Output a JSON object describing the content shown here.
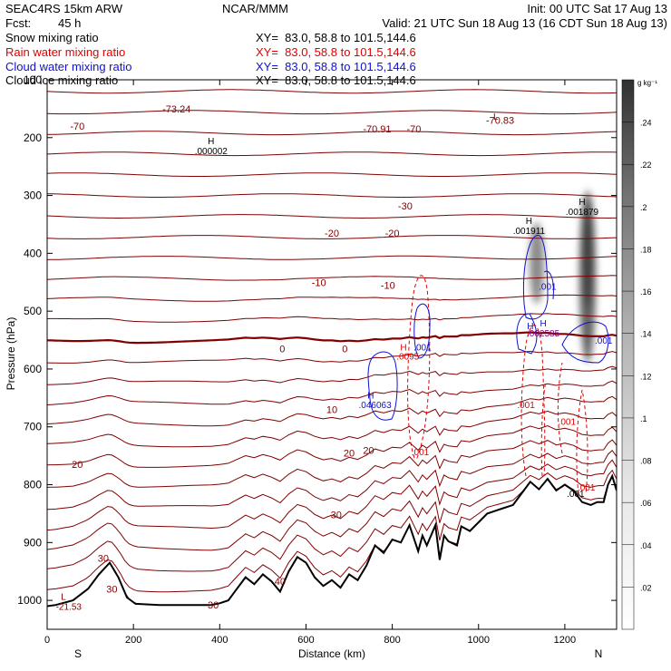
{
  "header": {
    "model": "SEAC4RS 15km ARW",
    "center": "NCAR/MMM",
    "init": "Init: 00 UTC Sat 17 Aug 13",
    "fcst_label": "Fcst:",
    "fcst_value": "45 h",
    "valid": "Valid: 21 UTC Sun 18 Aug 13 (16 CDT Sun 18 Aug 13)",
    "fields": [
      {
        "label": "Snow mixing ratio",
        "xy": "XY=  83.0, 58.8 to 101.5,144.6",
        "color": "#000000"
      },
      {
        "label": "Rain water mixing ratio",
        "xy": "XY=  83.0, 58.8 to 101.5,144.6",
        "color": "#e00000"
      },
      {
        "label": "Cloud water mixing ratio",
        "xy": "XY=  83.0, 58.8 to 101.5,144.6",
        "color": "#1010d0"
      },
      {
        "label": "Cloud ice mixing ratio",
        "xy": "XY=  83.0, 58.8 to 101.5,144.6",
        "color": "#000000"
      }
    ]
  },
  "chart_data": {
    "type": "heatmap",
    "xlabel": "Distance (km)",
    "ylabel": "Pressure (hPa)",
    "xlim": [
      0,
      1320
    ],
    "ylim": [
      1050,
      100
    ],
    "x_ticks": [
      0,
      200,
      400,
      600,
      800,
      1000,
      1200
    ],
    "y_ticks": [
      100,
      200,
      300,
      400,
      500,
      600,
      700,
      800,
      900,
      1000
    ],
    "y_tick_labels": [
      "100",
      "200",
      "300",
      "400",
      "500",
      "600",
      "700",
      "800",
      "900",
      "1000"
    ],
    "x_end_labels": {
      "left": "S",
      "right": "N"
    },
    "colorbar": {
      "unit": "g kg⁻¹",
      "ticks": [
        ".02",
        ".04",
        ".06",
        ".08",
        ".1",
        ".12",
        ".14",
        ".16",
        ".18",
        ".2",
        ".22",
        ".24"
      ],
      "tick_values": [
        0.02,
        0.04,
        0.06,
        0.08,
        0.1,
        0.12,
        0.14,
        0.16,
        0.18,
        0.2,
        0.22,
        0.24
      ],
      "range": [
        0,
        0.26
      ]
    },
    "isotherm_levels": [
      -70,
      -30,
      -20,
      -10,
      0,
      10,
      20,
      30,
      40
    ],
    "contour_labels": [
      {
        "text": "-70",
        "x": 70,
        "p": 180,
        "color": "#800000"
      },
      {
        "text": "-73.24",
        "x": 300,
        "p": 150,
        "color": "#800000"
      },
      {
        "text": "-70.91",
        "x": 765,
        "p": 185,
        "color": "#800000"
      },
      {
        "text": "-70",
        "x": 850,
        "p": 185,
        "color": "#800000"
      },
      {
        "text": "-70.83",
        "x": 1050,
        "p": 170,
        "color": "#800000"
      },
      {
        "text": "-30",
        "x": 830,
        "p": 318,
        "color": "#800000"
      },
      {
        "text": "-20",
        "x": 660,
        "p": 365,
        "color": "#800000"
      },
      {
        "text": "-20",
        "x": 800,
        "p": 365,
        "color": "#800000"
      },
      {
        "text": "-10",
        "x": 630,
        "p": 450,
        "color": "#800000"
      },
      {
        "text": "-10",
        "x": 790,
        "p": 455,
        "color": "#800000"
      },
      {
        "text": "0",
        "x": 545,
        "p": 565,
        "color": "#800000"
      },
      {
        "text": "0",
        "x": 690,
        "p": 565,
        "color": "#800000"
      },
      {
        "text": "10",
        "x": 660,
        "p": 670,
        "color": "#800000"
      },
      {
        "text": "20",
        "x": 70,
        "p": 765,
        "color": "#800000"
      },
      {
        "text": "20",
        "x": 700,
        "p": 745,
        "color": "#800000"
      },
      {
        "text": "20",
        "x": 745,
        "p": 740,
        "color": "#800000"
      },
      {
        "text": "30",
        "x": 670,
        "p": 852,
        "color": "#800000"
      },
      {
        "text": "30",
        "x": 130,
        "p": 927,
        "color": "#800000"
      },
      {
        "text": "30",
        "x": 150,
        "p": 980,
        "color": "#800000"
      },
      {
        "text": "40",
        "x": 540,
        "p": 967,
        "color": "#800000"
      },
      {
        "text": "30",
        "x": 385,
        "p": 1008,
        "color": "#800000"
      }
    ],
    "extrema_labels": [
      {
        "text": "H",
        "x": 380,
        "p": 205,
        "color": "#000000"
      },
      {
        "text": ".000002",
        "x": 380,
        "p": 222,
        "color": "#000000"
      },
      {
        "text": "H",
        "x": 1240,
        "p": 310,
        "color": "#000000"
      },
      {
        "text": ".001879",
        "x": 1240,
        "p": 327,
        "color": "#000000"
      },
      {
        "text": "H",
        "x": 1117,
        "p": 343,
        "color": "#000000"
      },
      {
        "text": ".001911",
        "x": 1117,
        "p": 360,
        "color": "#000000"
      },
      {
        "text": ".001",
        "x": 1160,
        "p": 457,
        "color": "#1010d0"
      },
      {
        "text": "H",
        "x": 1150,
        "p": 520,
        "color": "#1010d0"
      },
      {
        "text": ".002585",
        "x": 1150,
        "p": 537,
        "color": "#800080"
      },
      {
        "text": "H",
        "x": 1120,
        "p": 525,
        "color": "#1010d0"
      },
      {
        "text": "H",
        "x": 826,
        "p": 562,
        "color": "#e00000"
      },
      {
        "text": ".001",
        "x": 870,
        "p": 562,
        "color": "#1010d0"
      },
      {
        "text": ".0095",
        "x": 836,
        "p": 577,
        "color": "#e00000"
      },
      {
        "text": "H",
        "x": 750,
        "p": 645,
        "color": "#1010d0"
      },
      {
        "text": ".046063",
        "x": 760,
        "p": 661,
        "color": "#1010d0"
      },
      {
        "text": ".001",
        "x": 1290,
        "p": 550,
        "color": "#1010d0"
      },
      {
        "text": ".001",
        "x": 1110,
        "p": 661,
        "color": "#e00000"
      },
      {
        "text": ".001",
        "x": 1205,
        "p": 690,
        "color": "#e00000"
      },
      {
        "text": ".001",
        "x": 865,
        "p": 743,
        "color": "#e00000"
      },
      {
        "text": ".001",
        "x": 1250,
        "p": 804,
        "color": "#e00000"
      },
      {
        "text": ".001",
        "x": 1225,
        "p": 815,
        "color": "#000000"
      },
      {
        "text": "L",
        "x": 38,
        "p": 993,
        "color": "#800000"
      },
      {
        "text": "-21.53",
        "x": 50,
        "p": 1010,
        "color": "#800000"
      },
      {
        "text": "L",
        "x": 1040,
        "p": 163,
        "color": "#800000"
      }
    ],
    "terrain": {
      "x": [
        0,
        20,
        60,
        95,
        120,
        145,
        165,
        185,
        205,
        260,
        320,
        380,
        400,
        420,
        440,
        460,
        480,
        500,
        520,
        540,
        560,
        580,
        600,
        620,
        640,
        660,
        680,
        700,
        720,
        740,
        760,
        780,
        800,
        820,
        840,
        860,
        870,
        880,
        900,
        910,
        920,
        930,
        950,
        960,
        980,
        1000,
        1020,
        1040,
        1060,
        1080,
        1100,
        1120,
        1140,
        1160,
        1180,
        1200,
        1220,
        1240,
        1260,
        1275,
        1290,
        1300,
        1310,
        1320
      ],
      "p": [
        1010,
        1008,
        1000,
        980,
        955,
        935,
        960,
        995,
        1006,
        1008,
        1008,
        1008,
        1005,
        1000,
        980,
        960,
        972,
        955,
        967,
        985,
        950,
        925,
        935,
        960,
        975,
        965,
        978,
        955,
        965,
        940,
        905,
        918,
        895,
        900,
        870,
        915,
        888,
        905,
        870,
        930,
        888,
        898,
        905,
        872,
        880,
        865,
        850,
        845,
        840,
        835,
        815,
        795,
        808,
        790,
        810,
        800,
        810,
        830,
        835,
        830,
        830,
        800,
        785,
        810
      ]
    },
    "snow_max": 0.25,
    "cloud_ice_max": 0.001911
  }
}
